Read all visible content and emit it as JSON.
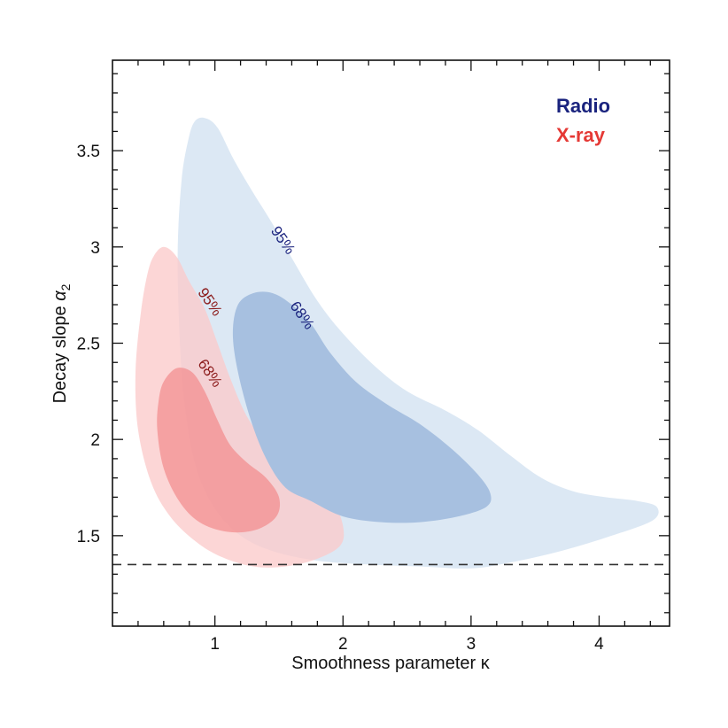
{
  "chart_data": {
    "type": "contour",
    "xlabel": "Smoothness parameter κ",
    "ylabel_main": "Decay slope ",
    "ylabel_symbol": "α",
    "ylabel_sub": "2",
    "xlim": [
      0.2,
      4.55
    ],
    "ylim": [
      1.03,
      3.97
    ],
    "xticks": [
      1,
      2,
      3,
      4
    ],
    "yticks": [
      1.5,
      2,
      2.5,
      3,
      3.5
    ],
    "xtick_labels": [
      "1",
      "2",
      "3",
      "4"
    ],
    "ytick_labels": [
      "1.5",
      "2",
      "2.5",
      "3",
      "3.5"
    ],
    "reference_line_y": 1.35,
    "legend": [
      {
        "name": "Radio",
        "color": "#1a237e"
      },
      {
        "name": "X-ray",
        "color": "#e53935"
      }
    ],
    "series": [
      {
        "name": "Radio",
        "colors": {
          "level95": "#dce8f4",
          "level68": "#a7c0e0",
          "label": "#1a237e"
        },
        "contours": [
          {
            "level": "95%",
            "label": "95%",
            "label_at": [
              1.5,
              3.02
            ],
            "label_angle": 55,
            "points": [
              [
                0.84,
                3.65
              ],
              [
                0.92,
                3.67
              ],
              [
                1.02,
                3.62
              ],
              [
                1.15,
                3.45
              ],
              [
                1.3,
                3.28
              ],
              [
                1.45,
                3.12
              ],
              [
                1.62,
                2.92
              ],
              [
                1.8,
                2.72
              ],
              [
                2.0,
                2.55
              ],
              [
                2.25,
                2.38
              ],
              [
                2.5,
                2.25
              ],
              [
                2.8,
                2.15
              ],
              [
                3.05,
                2.05
              ],
              [
                3.3,
                1.92
              ],
              [
                3.55,
                1.8
              ],
              [
                3.8,
                1.73
              ],
              [
                4.05,
                1.7
              ],
              [
                4.3,
                1.68
              ],
              [
                4.45,
                1.65
              ],
              [
                4.42,
                1.58
              ],
              [
                4.1,
                1.5
              ],
              [
                3.7,
                1.42
              ],
              [
                3.3,
                1.36
              ],
              [
                3.0,
                1.33
              ],
              [
                2.6,
                1.34
              ],
              [
                2.2,
                1.35
              ],
              [
                1.8,
                1.37
              ],
              [
                1.45,
                1.42
              ],
              [
                1.2,
                1.5
              ],
              [
                1.0,
                1.64
              ],
              [
                0.85,
                1.86
              ],
              [
                0.76,
                2.2
              ],
              [
                0.72,
                2.6
              ],
              [
                0.71,
                3.0
              ],
              [
                0.74,
                3.35
              ],
              [
                0.79,
                3.55
              ]
            ]
          },
          {
            "level": "68%",
            "label": "68%",
            "label_at": [
              1.65,
              2.63
            ],
            "label_angle": 55,
            "points": [
              [
                1.18,
                2.7
              ],
              [
                1.3,
                2.76
              ],
              [
                1.45,
                2.76
              ],
              [
                1.6,
                2.7
              ],
              [
                1.75,
                2.6
              ],
              [
                1.9,
                2.45
              ],
              [
                2.1,
                2.3
              ],
              [
                2.35,
                2.18
              ],
              [
                2.6,
                2.08
              ],
              [
                2.85,
                1.95
              ],
              [
                3.05,
                1.82
              ],
              [
                3.15,
                1.72
              ],
              [
                3.12,
                1.65
              ],
              [
                2.9,
                1.6
              ],
              [
                2.6,
                1.57
              ],
              [
                2.3,
                1.57
              ],
              [
                2.0,
                1.6
              ],
              [
                1.75,
                1.68
              ],
              [
                1.55,
                1.75
              ],
              [
                1.4,
                1.9
              ],
              [
                1.28,
                2.1
              ],
              [
                1.18,
                2.35
              ],
              [
                1.14,
                2.55
              ]
            ]
          }
        ]
      },
      {
        "name": "X-ray",
        "colors": {
          "level95": "#fbcacb",
          "level68": "#f28c8e",
          "label": "#8b1a1a"
        },
        "contours": [
          {
            "level": "95%",
            "label": "95%",
            "label_at": [
              0.93,
              2.7
            ],
            "label_angle": 55,
            "points": [
              [
                0.52,
                2.95
              ],
              [
                0.6,
                3.0
              ],
              [
                0.7,
                2.95
              ],
              [
                0.8,
                2.82
              ],
              [
                0.92,
                2.68
              ],
              [
                1.02,
                2.5
              ],
              [
                1.13,
                2.3
              ],
              [
                1.25,
                2.12
              ],
              [
                1.4,
                1.98
              ],
              [
                1.58,
                1.88
              ],
              [
                1.75,
                1.78
              ],
              [
                1.92,
                1.68
              ],
              [
                2.0,
                1.55
              ],
              [
                1.98,
                1.45
              ],
              [
                1.8,
                1.38
              ],
              [
                1.55,
                1.34
              ],
              [
                1.3,
                1.34
              ],
              [
                1.05,
                1.39
              ],
              [
                0.85,
                1.47
              ],
              [
                0.65,
                1.6
              ],
              [
                0.5,
                1.78
              ],
              [
                0.4,
                2.05
              ],
              [
                0.38,
                2.35
              ],
              [
                0.42,
                2.65
              ],
              [
                0.47,
                2.85
              ]
            ]
          },
          {
            "level": "68%",
            "label": "68%",
            "label_at": [
              0.93,
              2.33
            ],
            "label_angle": 55,
            "points": [
              [
                0.6,
                2.3
              ],
              [
                0.7,
                2.37
              ],
              [
                0.82,
                2.35
              ],
              [
                0.92,
                2.25
              ],
              [
                1.02,
                2.1
              ],
              [
                1.12,
                1.97
              ],
              [
                1.25,
                1.88
              ],
              [
                1.4,
                1.8
              ],
              [
                1.5,
                1.7
              ],
              [
                1.48,
                1.6
              ],
              [
                1.32,
                1.53
              ],
              [
                1.1,
                1.52
              ],
              [
                0.88,
                1.57
              ],
              [
                0.72,
                1.68
              ],
              [
                0.6,
                1.85
              ],
              [
                0.55,
                2.05
              ],
              [
                0.56,
                2.2
              ]
            ]
          }
        ]
      }
    ]
  }
}
